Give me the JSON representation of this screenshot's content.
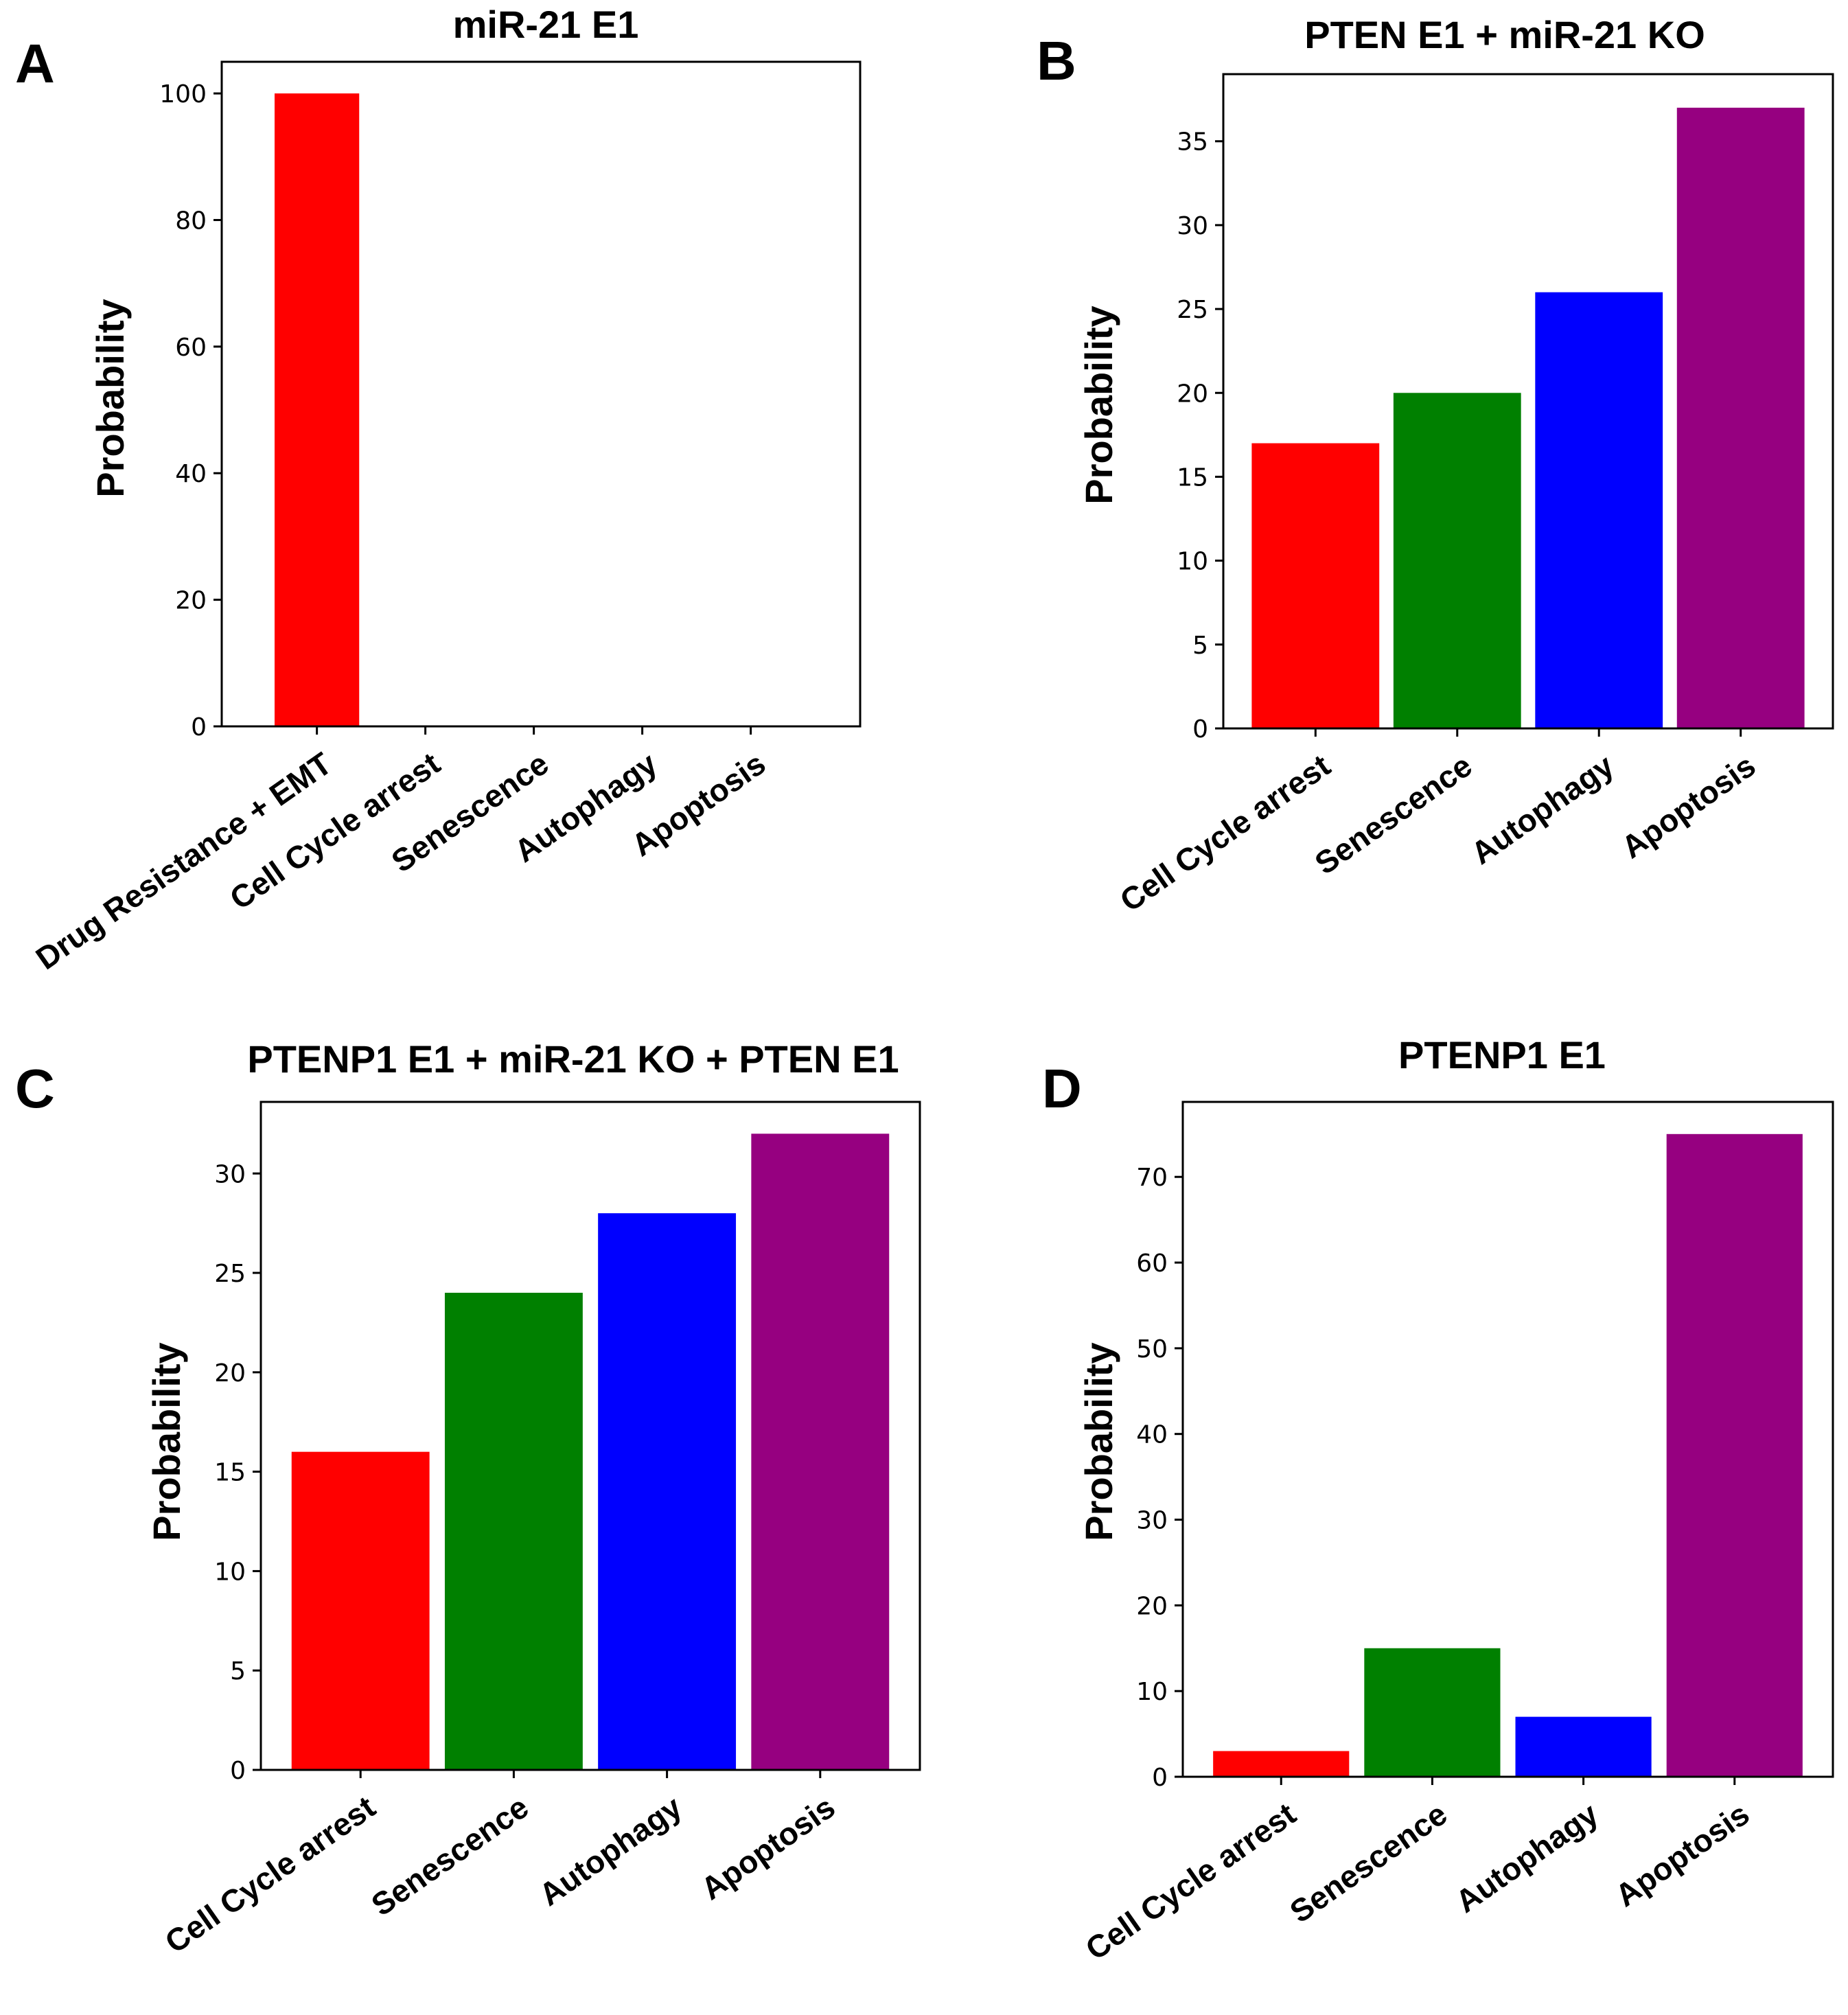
{
  "chart_data": [
    {
      "panel": "A",
      "type": "bar",
      "title": "miR-21 E1",
      "xlabel": "",
      "ylabel": "Probability",
      "categories": [
        "Drug Resistance + EMT",
        "Cell Cycle arrest",
        "Senescence",
        "Autophagy",
        "Apoptosis"
      ],
      "values": [
        100,
        0,
        0,
        0,
        0
      ],
      "colors": [
        "#ff0000",
        "#008000",
        "#0000ff",
        "#800080",
        "#800080"
      ],
      "ylim": [
        0,
        105
      ],
      "yticks": [
        0,
        20,
        40,
        60,
        80,
        100
      ]
    },
    {
      "panel": "B",
      "type": "bar",
      "title": "PTEN E1 + miR-21 KO",
      "xlabel": "",
      "ylabel": "Probability",
      "categories": [
        "Cell Cycle arrest",
        "Senescence",
        "Autophagy",
        "Apoptosis"
      ],
      "values": [
        17,
        20,
        26,
        37
      ],
      "colors": [
        "#ff0000",
        "#008000",
        "#0000ff",
        "#960080"
      ],
      "ylim": [
        0,
        39
      ],
      "yticks": [
        0,
        5,
        10,
        15,
        20,
        25,
        30,
        35
      ]
    },
    {
      "panel": "C",
      "type": "bar",
      "title": "PTENP1 E1 + miR-21 KO + PTEN E1",
      "xlabel": "",
      "ylabel": "Probability",
      "categories": [
        "Cell Cycle arrest",
        "Senescence",
        "Autophagy",
        "Apoptosis"
      ],
      "values": [
        16,
        24,
        28,
        32
      ],
      "colors": [
        "#ff0000",
        "#008000",
        "#0000ff",
        "#960080"
      ],
      "ylim": [
        0,
        33.6
      ],
      "yticks": [
        0,
        5,
        10,
        15,
        20,
        25,
        30
      ]
    },
    {
      "panel": "D",
      "type": "bar",
      "title": "PTENP1 E1",
      "xlabel": "",
      "ylabel": "Probability",
      "categories": [
        "Cell Cycle arrest",
        "Senescence",
        "Autophagy",
        "Apoptosis"
      ],
      "values": [
        3,
        15,
        7,
        75
      ],
      "colors": [
        "#ff0000",
        "#008000",
        "#0000ff",
        "#960080"
      ],
      "ylim": [
        0,
        78.75
      ],
      "yticks": [
        0,
        10,
        20,
        30,
        40,
        50,
        60,
        70
      ]
    }
  ]
}
